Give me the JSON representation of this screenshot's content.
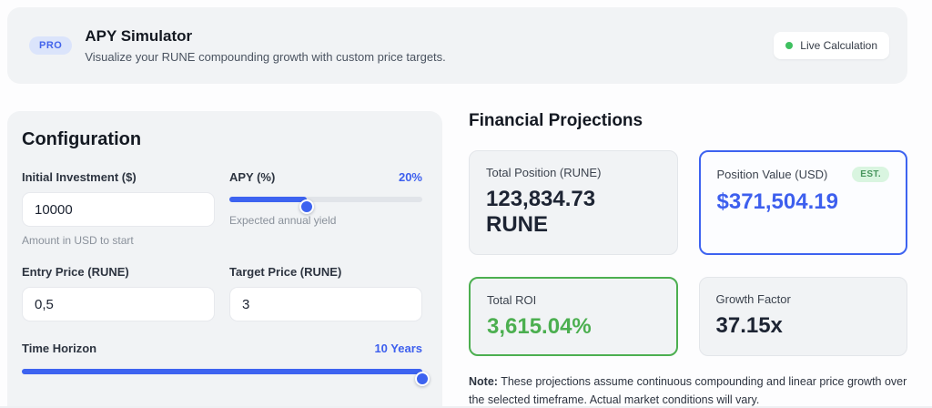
{
  "colors": {
    "accent_blue": "#3d63f0",
    "accent_blue_text": "#3d5fee",
    "green": "#4caf50",
    "live_dot_green": "#3fc060",
    "card_bg": "#f1f3f5",
    "pro_badge_bg": "#dbe4fb",
    "est_badge_bg": "#d9f5e0"
  },
  "header": {
    "pro_badge": "PRO",
    "title": "APY Simulator",
    "subtitle": "Visualize your RUNE compounding growth with custom price targets.",
    "live_badge": "Live Calculation"
  },
  "configuration": {
    "title": "Configuration",
    "initial_investment": {
      "label": "Initial Investment ($)",
      "value": "10000",
      "helper": "Amount in USD to start"
    },
    "apy": {
      "label": "APY (%)",
      "value_display": "20%",
      "helper": "Expected annual yield",
      "slider_percent": 40
    },
    "entry_price": {
      "label": "Entry Price (RUNE)",
      "value": "0,5"
    },
    "target_price": {
      "label": "Target Price (RUNE)",
      "value": "3"
    },
    "time_horizon": {
      "label": "Time Horizon",
      "value_display": "10 Years",
      "slider_percent": 100
    }
  },
  "projections": {
    "title": "Financial Projections",
    "cards": [
      {
        "label": "Total Position (RUNE)",
        "value": "123,834.73 RUNE"
      },
      {
        "label": "Position Value (USD)",
        "value": "$371,504.19",
        "badge": "EST."
      },
      {
        "label": "Total ROI",
        "value": "3,615.04%"
      },
      {
        "label": "Growth Factor",
        "value": "37.15x"
      }
    ],
    "note_label": "Note:",
    "note_text": " These projections assume continuous compounding and linear price growth over the selected timeframe. Actual market conditions will vary."
  }
}
